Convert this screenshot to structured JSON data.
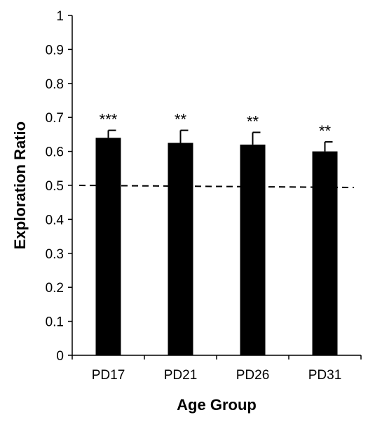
{
  "chart_data": {
    "type": "bar",
    "title": "",
    "xlabel": "Age Group",
    "ylabel": "Exploration Ratio",
    "categories": [
      "PD17",
      "PD21",
      "PD26",
      "PD31"
    ],
    "values": [
      0.64,
      0.625,
      0.62,
      0.6
    ],
    "errors": [
      0.022,
      0.037,
      0.036,
      0.028
    ],
    "significance": [
      "***",
      "**",
      "**",
      "**"
    ],
    "reference_line": {
      "value": 0.5,
      "style": "dashed"
    },
    "ylim": [
      0,
      1
    ],
    "y_ticks": [
      "0",
      "0.1",
      "0.2",
      "0.3",
      "0.4",
      "0.5",
      "0.6",
      "0.7",
      "0.8",
      "0.9",
      "1"
    ],
    "grid": false,
    "legend": "none",
    "bar_color": "#000000"
  }
}
